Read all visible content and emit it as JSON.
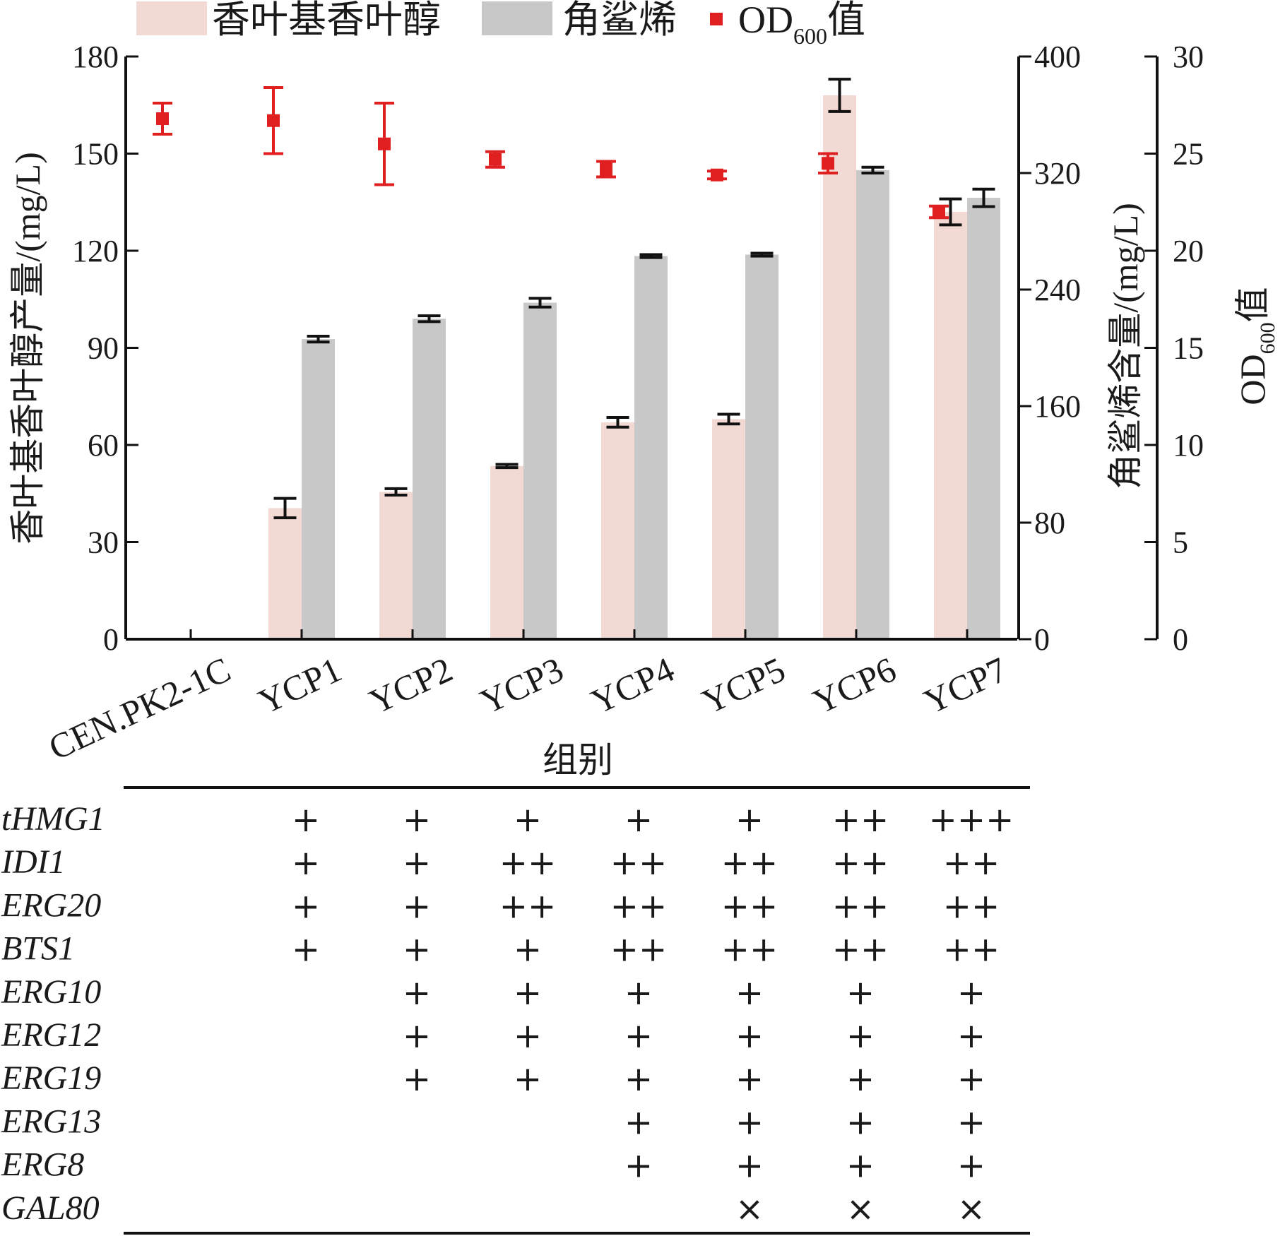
{
  "chart_data": {
    "type": "bar",
    "categories": [
      "CEN.PK2-1C",
      "YCP1",
      "YCP2",
      "YCP3",
      "YCP4",
      "YCP5",
      "YCP6",
      "YCP7"
    ],
    "xlabel": "组别",
    "legend": {
      "geranylgeraniol": "香叶基香叶醇",
      "squalene": "角鲨烯",
      "od_prefix": "OD",
      "od_sub": "600",
      "od_suffix": "值"
    },
    "axes": {
      "left": {
        "label": "香叶基香叶醇产量/(mg/L)",
        "ylim": [
          0,
          180
        ],
        "ticks": [
          "0",
          "30",
          "60",
          "90",
          "120",
          "150",
          "180"
        ]
      },
      "right1": {
        "label": "角鲨烯含量/(mg/L)",
        "ylim": [
          0,
          400
        ],
        "ticks": [
          "0",
          "80",
          "160",
          "240",
          "320",
          "400"
        ]
      },
      "right2": {
        "label_prefix": "OD",
        "label_sub": "600",
        "label_suffix": "值",
        "ylim": [
          0,
          30
        ],
        "ticks": [
          "0",
          "5",
          "10",
          "15",
          "20",
          "25",
          "30"
        ]
      }
    },
    "series": [
      {
        "name": "香叶基香叶醇",
        "axis": "left",
        "color": "#f3d9d4",
        "values": [
          0,
          40.5,
          45.5,
          53.5,
          67,
          68,
          168,
          132
        ],
        "errors": [
          0,
          3,
          1,
          0.5,
          1.5,
          1.5,
          5,
          4
        ]
      },
      {
        "name": "角鲨烯",
        "axis": "right1",
        "color": "#c8c8c8",
        "values": [
          0,
          206,
          220,
          231,
          263,
          264,
          322,
          303
        ],
        "errors": [
          0,
          2,
          2,
          3,
          1,
          1,
          2,
          6
        ]
      },
      {
        "name": "OD600值",
        "axis": "right2",
        "color": "#e02020",
        "values": [
          26.8,
          26.7,
          25.5,
          24.7,
          24.2,
          23.9,
          24.5,
          22.0
        ],
        "errors": [
          0.8,
          1.7,
          2.1,
          0.4,
          0.4,
          0.2,
          0.5,
          0.3
        ]
      }
    ]
  },
  "genotype_table": {
    "genes": [
      "tHMG1",
      "IDI1",
      "ERG20",
      "BTS1",
      "ERG10",
      "ERG12",
      "ERG19",
      "ERG13",
      "ERG8",
      "GAL80"
    ],
    "columns": [
      "YCP1",
      "YCP2",
      "YCP3",
      "YCP4",
      "YCP5",
      "YCP6",
      "YCP7"
    ],
    "rows": [
      [
        "+",
        "+",
        "+",
        "+",
        "+",
        "++",
        "+++"
      ],
      [
        "+",
        "+",
        "++",
        "++",
        "++",
        "++",
        "++"
      ],
      [
        "+",
        "+",
        "++",
        "++",
        "++",
        "++",
        "++"
      ],
      [
        "+",
        "+",
        "+",
        "++",
        "++",
        "++",
        "++"
      ],
      [
        "",
        "+",
        "+",
        "+",
        "+",
        "+",
        "+"
      ],
      [
        "",
        "+",
        "+",
        "+",
        "+",
        "+",
        "+"
      ],
      [
        "",
        "+",
        "+",
        "+",
        "+",
        "+",
        "+"
      ],
      [
        "",
        "",
        "",
        "+",
        "+",
        "+",
        "+"
      ],
      [
        "",
        "",
        "",
        "+",
        "+",
        "+",
        "+"
      ],
      [
        "",
        "",
        "",
        "",
        "×",
        "×",
        "×"
      ]
    ]
  }
}
